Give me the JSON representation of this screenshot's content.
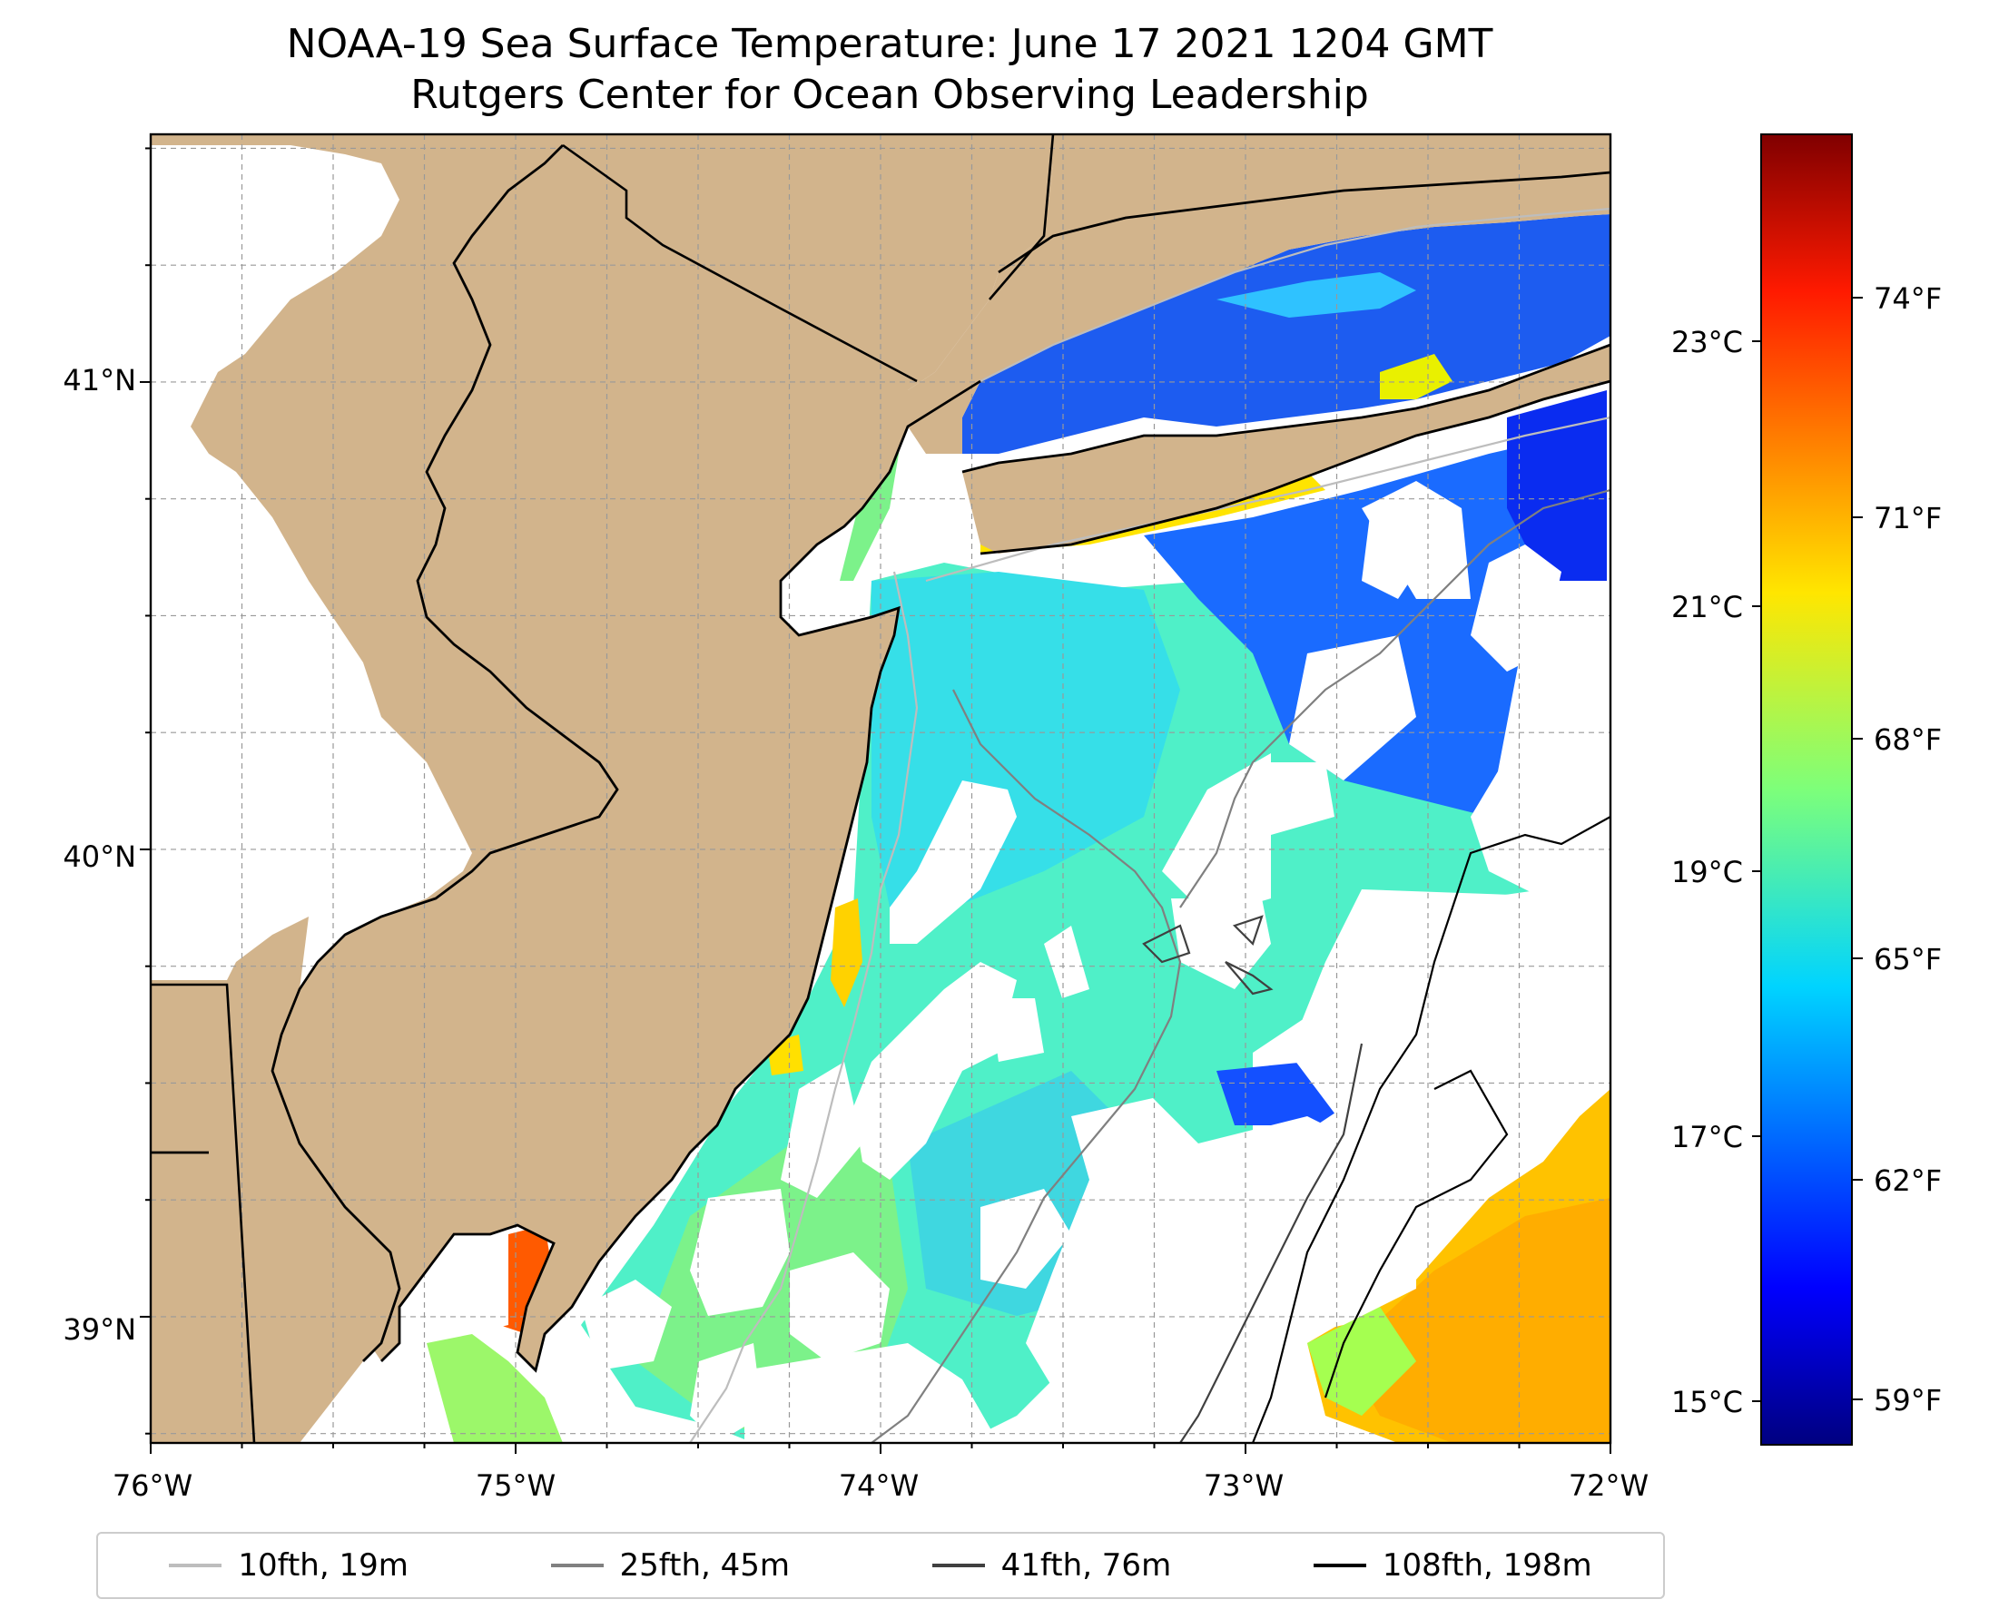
{
  "title": {
    "line1": "NOAA-19 Sea Surface Temperature: June 17 2021 1204 GMT",
    "line2": "Rutgers Center for Ocean Observing Leadership"
  },
  "map": {
    "lon_range": [
      -76,
      -72
    ],
    "lat_range": [
      38.73,
      41.53
    ],
    "x_ticks": [
      "76°W",
      "75°W",
      "74°W",
      "73°W",
      "72°W"
    ],
    "y_ticks": [
      "41°N",
      "40°N",
      "39°N"
    ],
    "land_color": "#d2b48c",
    "no_data_color": "#ffffff",
    "gridlines": true
  },
  "colorbar": {
    "colormap": "jet",
    "celsius_ticks": [
      "23°C",
      "21°C",
      "19°C",
      "17°C",
      "15°C"
    ],
    "fahrenheit_ticks": [
      "74°F",
      "71°F",
      "68°F",
      "65°F",
      "62°F",
      "59°F"
    ]
  },
  "legend": {
    "items": [
      {
        "label": "10fth, 19m",
        "color": "#bdbdbd"
      },
      {
        "label": "25fth, 45m",
        "color": "#808080"
      },
      {
        "label": "41fth, 76m",
        "color": "#404040"
      },
      {
        "label": "108fth, 198m",
        "color": "#000000"
      }
    ]
  }
}
